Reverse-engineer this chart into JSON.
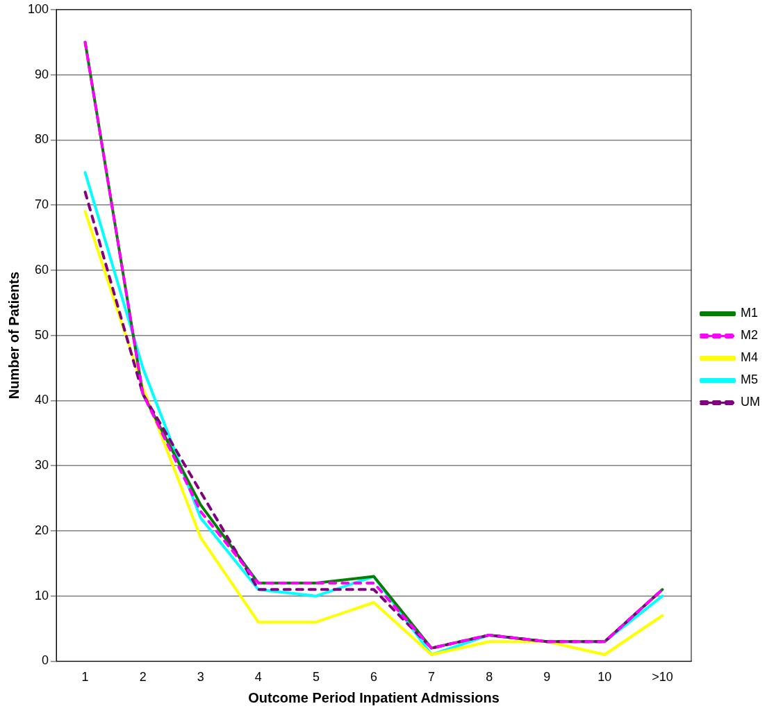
{
  "chart_data": {
    "type": "line",
    "xlabel": "Outcome Period Inpatient Admissions",
    "ylabel": "Number of Patients",
    "categories": [
      "1",
      "2",
      "3",
      "4",
      "5",
      "6",
      "7",
      "8",
      "9",
      "10",
      ">10"
    ],
    "ylim": [
      0,
      100
    ],
    "yticks": [
      0,
      10,
      20,
      30,
      40,
      50,
      60,
      70,
      80,
      90,
      100
    ],
    "grid": "y",
    "legend": "right",
    "marker": "none",
    "series": [
      {
        "name": "M1",
        "color": "#008000",
        "line_style": "solid",
        "values": [
          95,
          41,
          24,
          12,
          12,
          13,
          2,
          4,
          3,
          3,
          11
        ]
      },
      {
        "name": "M2",
        "color": "#ff00ff",
        "line_style": "dashed",
        "values": [
          95,
          41,
          23,
          12,
          12,
          12,
          2,
          4,
          3,
          3,
          11
        ]
      },
      {
        "name": "M4",
        "color": "#ffff00",
        "line_style": "solid",
        "values": [
          69,
          42,
          19,
          6,
          6,
          9,
          1,
          3,
          3,
          1,
          7
        ]
      },
      {
        "name": "M5",
        "color": "#00ffff",
        "line_style": "solid",
        "values": [
          75,
          45,
          22,
          11,
          10,
          13,
          1,
          4,
          3,
          3,
          10
        ]
      },
      {
        "name": "UM",
        "color": "#800080",
        "line_style": "dashed",
        "values": [
          72,
          41,
          26,
          11,
          11,
          11,
          2,
          4,
          3,
          3,
          11
        ]
      }
    ]
  }
}
